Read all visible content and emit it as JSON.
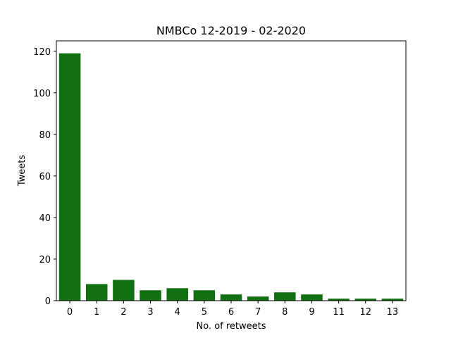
{
  "chart_data": {
    "type": "bar",
    "title": "NMBCo 12-2019 - 02-2020",
    "xlabel": "No. of retweets",
    "ylabel": "Tweets",
    "categories": [
      "0",
      "1",
      "2",
      "3",
      "4",
      "5",
      "6",
      "7",
      "8",
      "9",
      "11",
      "12",
      "13"
    ],
    "values": [
      119,
      8,
      10,
      5,
      6,
      5,
      3,
      2,
      4,
      3,
      1,
      1,
      1
    ],
    "ylim": [
      0,
      125
    ],
    "yticks": [
      0,
      20,
      40,
      60,
      80,
      100,
      120
    ],
    "bar_color": "#107010",
    "grid": false,
    "legend": "none"
  }
}
